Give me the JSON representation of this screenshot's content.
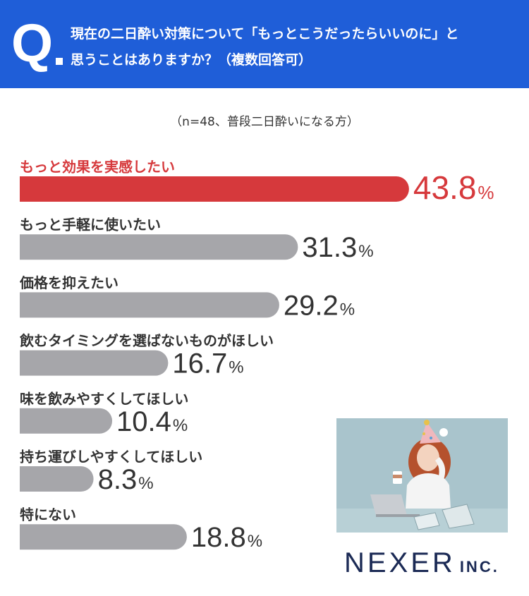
{
  "header": {
    "q_label": "Q",
    "question_line1": "現在の二日酔い対策について「もっとこうだったらいいのに」と",
    "question_line2": "思うことはありますか？（複数回答可）"
  },
  "note": "（n=48、普段二日酔いになる方）",
  "colors": {
    "header_bg": "#1f5ed8",
    "highlight_bar": "#d6393c",
    "bar": "#a6a6aa",
    "highlight_text": "#d6393c",
    "text": "#333333"
  },
  "chart_data": {
    "type": "bar",
    "orientation": "horizontal",
    "unit": "%",
    "categories": [
      "もっと効果を実感したい",
      "もっと手軽に使いたい",
      "価格を抑えたい",
      "飲むタイミングを選ばないものがほしい",
      "味を飲みやすくしてほしい",
      "持ち運びしやすくしてほしい",
      "特にない"
    ],
    "values": [
      43.8,
      31.3,
      29.2,
      16.7,
      10.4,
      8.3,
      18.8
    ],
    "highlight_index": 0
  },
  "logo": {
    "main": "NEXER",
    "inc": "INC."
  }
}
